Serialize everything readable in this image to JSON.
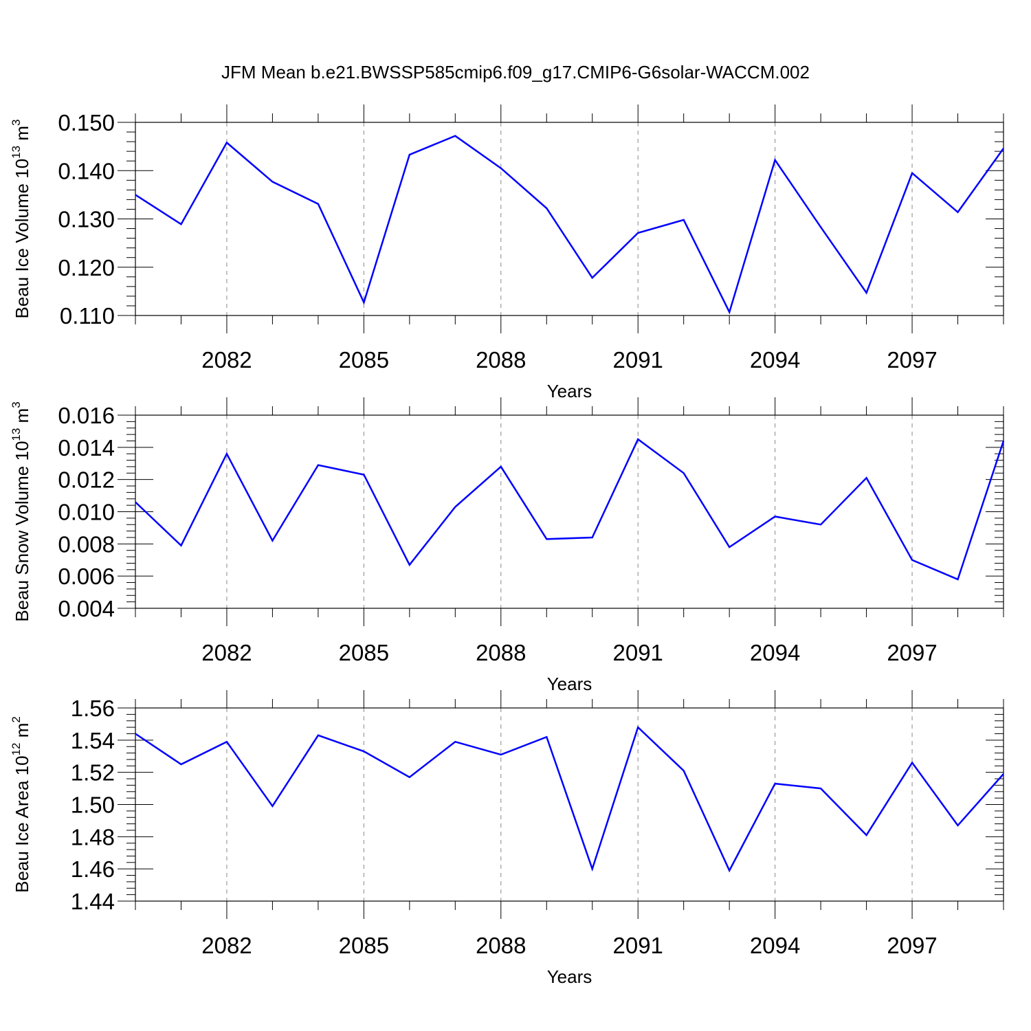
{
  "figure": {
    "title": "JFM Mean b.e21.BWSSP585cmip6.f09_g17.CMIP6-G6solar-WACCM.002"
  },
  "chart_data": [
    {
      "type": "line",
      "xlabel": "Years",
      "ylabel": {
        "text": "Beau Ice Volume 10",
        "exp": "13",
        "unit": " m",
        "unit_exp": "3"
      },
      "xlim": [
        2080,
        2099
      ],
      "ylim": [
        0.11,
        0.15
      ],
      "xticks": [
        2082,
        2085,
        2088,
        2091,
        2094,
        2097
      ],
      "xtick_labels": [
        "2082",
        "2085",
        "2088",
        "2091",
        "2094",
        "2097"
      ],
      "yticks": [
        0.11,
        0.12,
        0.13,
        0.14,
        0.15
      ],
      "ytick_labels": [
        "0.110",
        "0.120",
        "0.130",
        "0.140",
        "0.150"
      ],
      "grid": "vertical dashed at major x ticks",
      "color": "#0000ff",
      "x": [
        2080,
        2081,
        2082,
        2083,
        2084,
        2085,
        2086,
        2087,
        2088,
        2089,
        2090,
        2091,
        2092,
        2093,
        2094,
        2095,
        2096,
        2097,
        2098,
        2099
      ],
      "y": [
        0.135,
        0.1289,
        0.1458,
        0.1377,
        0.1331,
        0.1127,
        0.1433,
        0.1472,
        0.1405,
        0.1322,
        0.1178,
        0.1271,
        0.1298,
        0.1107,
        0.1422,
        0.1283,
        0.1147,
        0.1395,
        0.1314,
        0.1446
      ]
    },
    {
      "type": "line",
      "xlabel": "Years",
      "ylabel": {
        "text": "Beau Snow Volume 10",
        "exp": "13",
        "unit": " m",
        "unit_exp": "3"
      },
      "xlim": [
        2080,
        2099
      ],
      "ylim": [
        0.004,
        0.016
      ],
      "xticks": [
        2082,
        2085,
        2088,
        2091,
        2094,
        2097
      ],
      "xtick_labels": [
        "2082",
        "2085",
        "2088",
        "2091",
        "2094",
        "2097"
      ],
      "yticks": [
        0.004,
        0.006,
        0.008,
        0.01,
        0.012,
        0.014,
        0.016
      ],
      "ytick_labels": [
        "0.004",
        "0.006",
        "0.008",
        "0.010",
        "0.012",
        "0.014",
        "0.016"
      ],
      "grid": "vertical dashed at major x ticks",
      "color": "#0000ff",
      "x": [
        2080,
        2081,
        2082,
        2083,
        2084,
        2085,
        2086,
        2087,
        2088,
        2089,
        2090,
        2091,
        2092,
        2093,
        2094,
        2095,
        2096,
        2097,
        2098,
        2099
      ],
      "y": [
        0.0106,
        0.0079,
        0.0136,
        0.0082,
        0.0129,
        0.0123,
        0.0067,
        0.0103,
        0.0128,
        0.0083,
        0.0084,
        0.0145,
        0.0124,
        0.0078,
        0.0097,
        0.0092,
        0.0121,
        0.007,
        0.0058,
        0.0144
      ]
    },
    {
      "type": "line",
      "xlabel": "Years",
      "ylabel": {
        "text": "Beau Ice Area 10",
        "exp": "12",
        "unit": " m",
        "unit_exp": "2"
      },
      "xlim": [
        2080,
        2099
      ],
      "ylim": [
        1.44,
        1.56
      ],
      "xticks": [
        2082,
        2085,
        2088,
        2091,
        2094,
        2097
      ],
      "xtick_labels": [
        "2082",
        "2085",
        "2088",
        "2091",
        "2094",
        "2097"
      ],
      "yticks": [
        1.44,
        1.46,
        1.48,
        1.5,
        1.52,
        1.54,
        1.56
      ],
      "ytick_labels": [
        "1.44",
        "1.46",
        "1.48",
        "1.50",
        "1.52",
        "1.54",
        "1.56"
      ],
      "grid": "vertical dashed at major x ticks",
      "color": "#0000ff",
      "x": [
        2080,
        2081,
        2082,
        2083,
        2084,
        2085,
        2086,
        2087,
        2088,
        2089,
        2090,
        2091,
        2092,
        2093,
        2094,
        2095,
        2096,
        2097,
        2098,
        2099
      ],
      "y": [
        1.544,
        1.525,
        1.539,
        1.499,
        1.543,
        1.533,
        1.517,
        1.539,
        1.531,
        1.542,
        1.46,
        1.548,
        1.521,
        1.459,
        1.513,
        1.51,
        1.481,
        1.526,
        1.487,
        1.519
      ]
    }
  ]
}
